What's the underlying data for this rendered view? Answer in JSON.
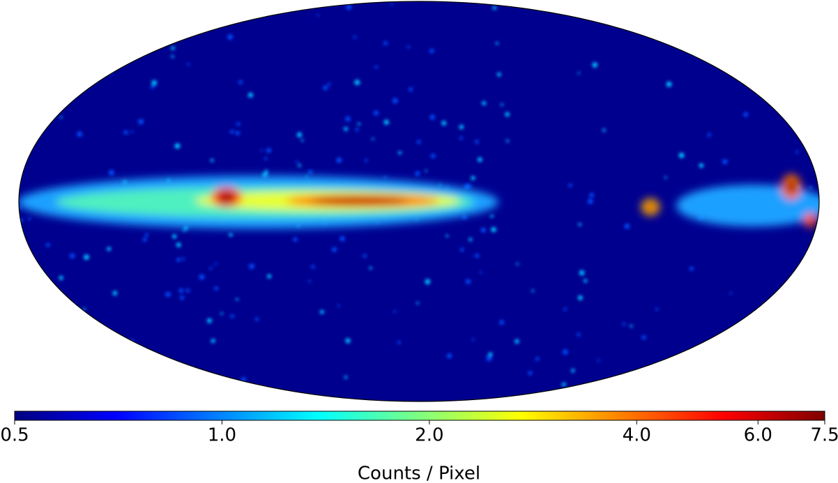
{
  "chart_data": {
    "type": "heatmap",
    "projection": "mollweide",
    "colorbar": {
      "label": "Counts / Pixel",
      "colormap": "jet",
      "scale": "log",
      "lim": [
        0.5,
        7.5
      ],
      "ticks": [
        0.5,
        {
          "value": 1,
          "label": "1.0"
        },
        {
          "value": 2,
          "label": "2.0"
        },
        {
          "value": 4,
          "label": "4.0"
        },
        {
          "value": 6,
          "label": "6.0"
        },
        7.5
      ]
    }
  }
}
